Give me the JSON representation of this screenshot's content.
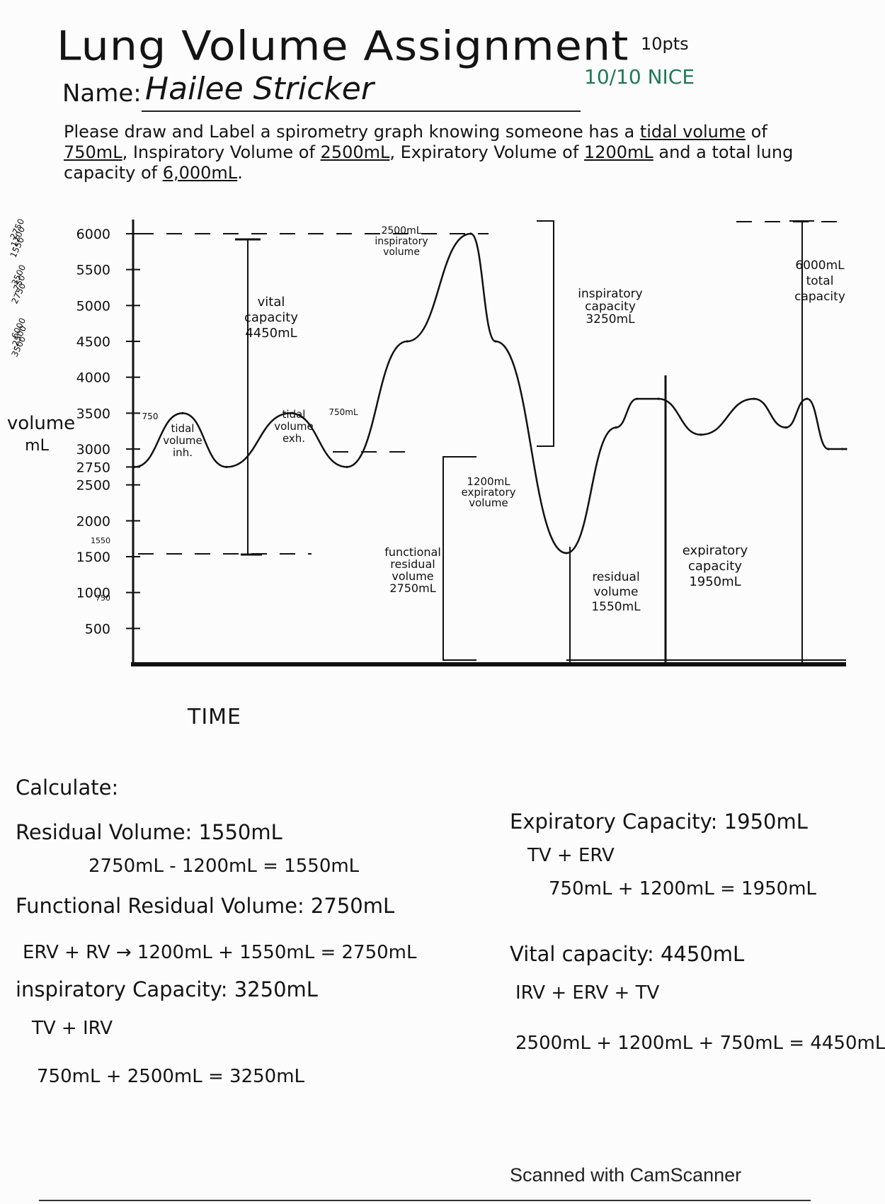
{
  "header": {
    "title": "Lung Volume Assignment",
    "points": "10pts",
    "grade": "10/10 NICE",
    "name_label": "Name:",
    "name_value": "Hailee Stricker"
  },
  "instructions": {
    "prefix": "Please draw and Label a spirometry graph knowing someone has a ",
    "tv_label": "tidal volume",
    "of1": " of ",
    "tv_value": "750mL",
    "mid1": ", Inspiratory Volume of ",
    "irv_value": "2500mL",
    "mid2": ", Expiratory Volume of ",
    "erv_value": "1200mL",
    "mid3": " and a total lung capacity of ",
    "tlc_value": "6,000mL",
    "end": "."
  },
  "margin_notes": {
    "note1": [
      "2750",
      "-1200",
      "1550"
    ],
    "note2": [
      "3500",
      "-750",
      "2750"
    ],
    "note3": [
      "6000",
      "-2500",
      "3500"
    ]
  },
  "chart_data": {
    "type": "line",
    "ylabel": "volume mL",
    "xlabel": "TIME",
    "y_ticks": [
      "6000",
      "5500",
      "5000",
      "4500",
      "4000",
      "3500",
      "3000",
      "2750",
      "2500",
      "2000",
      "1500",
      "1000",
      "500"
    ],
    "ylim": [
      0,
      6000
    ],
    "extra_tick_marks": [
      "750",
      "1550"
    ],
    "series": [
      {
        "x": [
          0,
          1,
          2,
          3,
          4,
          5,
          6,
          7,
          8,
          9,
          10,
          11,
          12,
          13,
          14,
          15,
          16,
          17,
          18
        ],
        "values": [
          2750,
          3500,
          2750,
          3500,
          2750,
          4500,
          6000,
          4500,
          1550,
          3300,
          3700,
          3700,
          3200,
          3700,
          3300,
          3700,
          3000,
          3000,
          3000
        ]
      }
    ],
    "annotations": {
      "tv_inh": [
        "tidal",
        "volume",
        "inh."
      ],
      "tv_exh": [
        "tidal",
        "volume",
        "exh."
      ],
      "tv_750_a": "750",
      "tv_750_b": "750mL",
      "vc": [
        "vital",
        "capacity",
        "4450mL"
      ],
      "irv": [
        "2500mL",
        "inspiratory",
        "volume"
      ],
      "ic": [
        "inspiratory",
        "capacity",
        "3250mL"
      ],
      "tlc": [
        "6000mL",
        "total",
        "capacity"
      ],
      "erv": [
        "1200mL",
        "expiratory",
        "volume"
      ],
      "frc": [
        "functional",
        "residual",
        "volume",
        "2750mL"
      ],
      "rv": [
        "residual",
        "volume",
        "1550mL"
      ],
      "ec": [
        "expiratory",
        "capacity",
        "1950mL"
      ]
    }
  },
  "calculations": {
    "heading": "Calculate:",
    "left": [
      {
        "label": "Residual Volume: 1550mL",
        "work": "2750mL - 1200mL = 1550mL"
      },
      {
        "label": "Functional Residual Volume: 2750mL",
        "work": "ERV + RV → 1200mL + 1550mL = 2750mL"
      },
      {
        "label": "inspiratory Capacity: 3250mL",
        "formula": "TV + IRV",
        "work": "750mL + 2500mL = 3250mL"
      }
    ],
    "right": [
      {
        "label": "Expiratory Capacity: 1950mL",
        "formula": "TV + ERV",
        "work": "750mL + 1200mL = 1950mL"
      },
      {
        "label": "Vital capacity: 4450mL",
        "formula": "IRV + ERV + TV",
        "work": "2500mL + 1200mL + 750mL = 4450mL"
      }
    ]
  },
  "footer": {
    "scanner": "Scanned with CamScanner"
  }
}
